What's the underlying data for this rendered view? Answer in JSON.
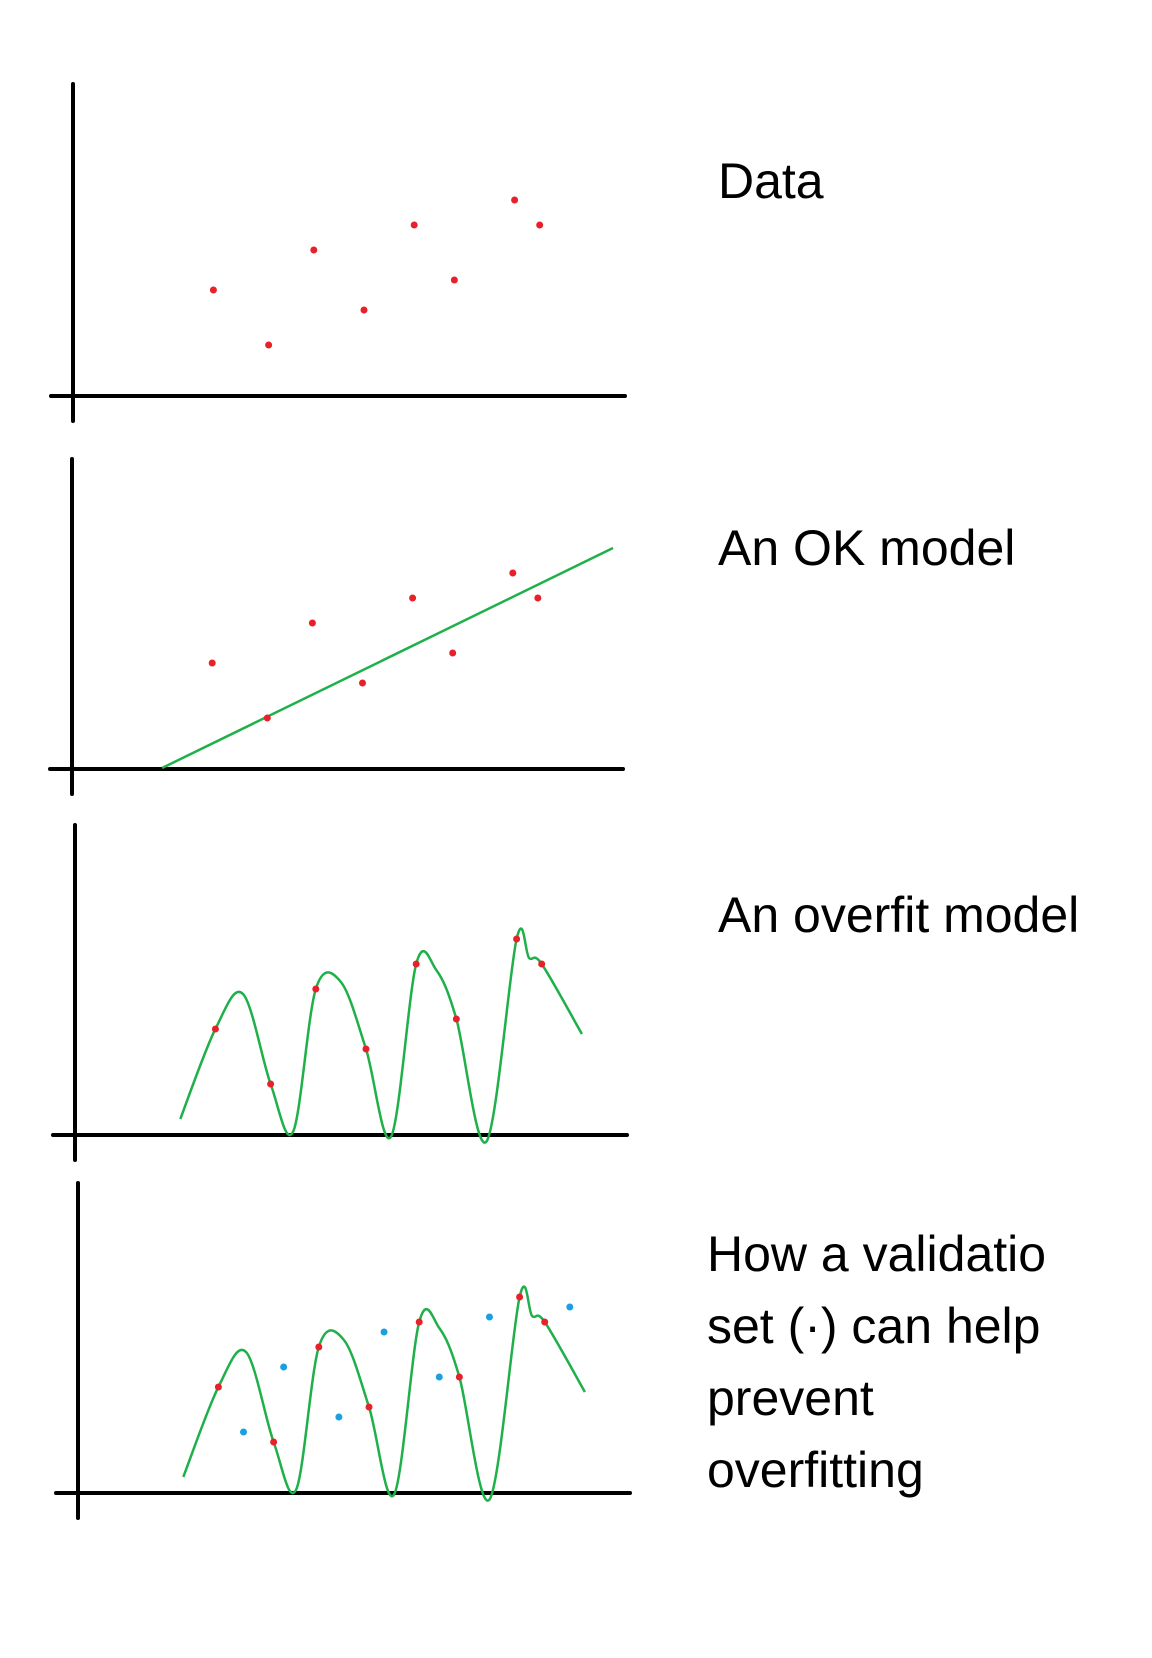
{
  "colors": {
    "axis": "#000000",
    "training_point": "#e8202a",
    "validation_point": "#1aa0e0",
    "model_line": "#1fb04a"
  },
  "panels": [
    {
      "caption_lines": [
        "Data"
      ],
      "model": "none",
      "training_points": [
        [
          2.0,
          6.0
        ],
        [
          3.1,
          4.9
        ],
        [
          4.0,
          6.8
        ],
        [
          5.0,
          5.6
        ],
        [
          6.0,
          7.3
        ],
        [
          6.8,
          6.2
        ],
        [
          8.0,
          7.8
        ],
        [
          8.5,
          7.3
        ]
      ],
      "validation_points": []
    },
    {
      "caption_lines": [
        "An OK model"
      ],
      "model": "linear",
      "line": [
        [
          1.0,
          3.9
        ],
        [
          10.0,
          8.3
        ]
      ],
      "training_points": [
        [
          2.0,
          6.0
        ],
        [
          3.1,
          4.9
        ],
        [
          4.0,
          6.8
        ],
        [
          5.0,
          5.6
        ],
        [
          6.0,
          7.3
        ],
        [
          6.8,
          6.2
        ],
        [
          8.0,
          7.8
        ],
        [
          8.5,
          7.3
        ]
      ],
      "validation_points": []
    },
    {
      "caption_lines": [
        "An overfit model"
      ],
      "model": "overfit",
      "training_points": [
        [
          2.0,
          6.0
        ],
        [
          3.1,
          4.9
        ],
        [
          4.0,
          6.8
        ],
        [
          5.0,
          5.6
        ],
        [
          6.0,
          7.3
        ],
        [
          6.8,
          6.2
        ],
        [
          8.0,
          7.8
        ],
        [
          8.5,
          7.3
        ]
      ],
      "validation_points": []
    },
    {
      "caption_lines": [
        "How a validatio",
        "set (·) can help",
        "prevent",
        "overfitting"
      ],
      "model": "overfit",
      "training_points": [
        [
          2.0,
          6.0
        ],
        [
          3.1,
          4.9
        ],
        [
          4.0,
          6.8
        ],
        [
          5.0,
          5.6
        ],
        [
          6.0,
          7.3
        ],
        [
          6.8,
          6.2
        ],
        [
          8.0,
          7.8
        ],
        [
          8.5,
          7.3
        ]
      ],
      "validation_points": [
        [
          2.5,
          5.1
        ],
        [
          3.3,
          6.4
        ],
        [
          4.4,
          5.4
        ],
        [
          5.3,
          7.1
        ],
        [
          6.4,
          6.2
        ],
        [
          7.4,
          7.4
        ],
        [
          9.0,
          7.6
        ]
      ]
    }
  ]
}
